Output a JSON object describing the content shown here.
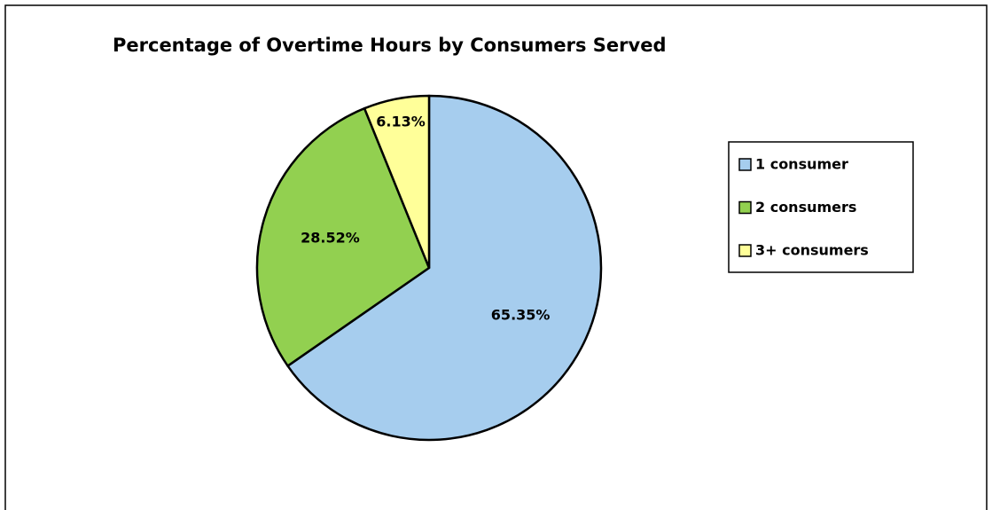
{
  "chart_data": {
    "type": "pie",
    "title": "Percentage of Overtime Hours by Consumers Served",
    "categories": [
      "1 consumer",
      "2 consumers",
      "3+ consumers"
    ],
    "values": [
      65.35,
      28.52,
      6.13
    ],
    "value_labels": [
      "65.35%",
      "28.52%",
      "6.13%"
    ],
    "colors": [
      "#a6cdee",
      "#92d050",
      "#ffff99"
    ],
    "legend": "right"
  }
}
